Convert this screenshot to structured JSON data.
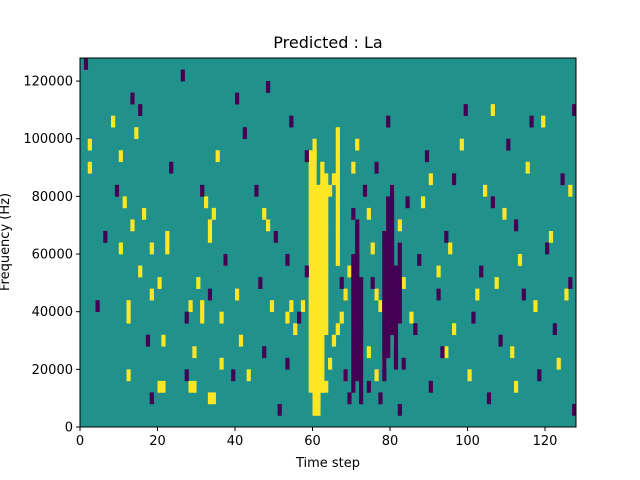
{
  "chart_data": {
    "type": "heatmap",
    "title": "Predicted : La",
    "xlabel": "Time step",
    "ylabel": "Frequency (Hz)",
    "xlim": [
      0,
      128
    ],
    "ylim": [
      0,
      128000
    ],
    "x_ticks": [
      0,
      20,
      40,
      60,
      80,
      100,
      120
    ],
    "y_ticks": [
      0,
      20000,
      40000,
      60000,
      80000,
      100000,
      120000
    ],
    "x_tick_labels": [
      "0",
      "20",
      "40",
      "60",
      "80",
      "100",
      "120"
    ],
    "y_tick_labels": [
      "0",
      "20000",
      "40000",
      "60000",
      "80000",
      "100000",
      "120000"
    ],
    "grid": false,
    "colormap": "viridis",
    "colors": {
      "background": "#21918c",
      "high": "#fde725",
      "low": "#440154"
    },
    "time_steps": 128,
    "frequency_bins": 32,
    "bin_width_hz": 4000,
    "yellow_cells": [
      [
        2,
        24
      ],
      [
        2,
        22
      ],
      [
        8,
        26
      ],
      [
        10,
        23
      ],
      [
        11,
        19
      ],
      [
        13,
        17
      ],
      [
        14,
        25
      ],
      [
        10,
        15
      ],
      [
        12,
        9
      ],
      [
        12,
        10
      ],
      [
        12,
        4
      ],
      [
        15,
        13
      ],
      [
        16,
        18
      ],
      [
        18,
        15
      ],
      [
        18,
        11
      ],
      [
        20,
        12
      ],
      [
        20,
        3
      ],
      [
        21,
        3
      ],
      [
        21,
        7
      ],
      [
        22,
        16
      ],
      [
        22,
        15
      ],
      [
        28,
        10
      ],
      [
        28,
        3
      ],
      [
        29,
        3
      ],
      [
        29,
        6
      ],
      [
        31,
        9
      ],
      [
        31,
        10
      ],
      [
        30,
        12
      ],
      [
        32,
        19
      ],
      [
        33,
        16
      ],
      [
        33,
        17
      ],
      [
        34,
        18
      ],
      [
        33,
        2
      ],
      [
        34,
        2
      ],
      [
        35,
        23
      ],
      [
        36,
        5
      ],
      [
        36,
        9
      ],
      [
        37,
        14
      ],
      [
        40,
        11
      ],
      [
        41,
        7
      ],
      [
        43,
        4
      ],
      [
        47,
        18
      ],
      [
        48,
        17
      ],
      [
        49,
        10
      ],
      [
        53,
        9
      ],
      [
        54,
        10
      ],
      [
        55,
        8
      ],
      [
        57,
        10
      ],
      [
        60,
        8
      ],
      [
        61,
        6
      ],
      [
        60,
        23
      ],
      [
        60,
        2
      ],
      [
        61,
        2
      ],
      [
        62,
        3
      ],
      [
        63,
        3
      ],
      [
        64,
        5
      ],
      [
        65,
        7
      ],
      [
        66,
        8
      ],
      [
        64,
        20
      ],
      [
        65,
        21
      ],
      [
        67,
        9
      ],
      [
        68,
        11
      ],
      [
        69,
        13
      ],
      [
        70,
        22
      ],
      [
        71,
        24
      ],
      [
        74,
        6
      ],
      [
        74,
        18
      ],
      [
        75,
        15
      ],
      [
        76,
        11
      ],
      [
        76,
        4
      ],
      [
        77,
        10
      ],
      [
        78,
        5
      ],
      [
        80,
        20
      ],
      [
        81,
        7
      ],
      [
        82,
        17
      ],
      [
        83,
        12
      ],
      [
        85,
        9
      ],
      [
        88,
        19
      ],
      [
        90,
        21
      ],
      [
        92,
        13
      ],
      [
        94,
        6
      ],
      [
        95,
        15
      ],
      [
        96,
        8
      ],
      [
        98,
        24
      ],
      [
        100,
        4
      ],
      [
        102,
        11
      ],
      [
        104,
        20
      ],
      [
        106,
        27
      ],
      [
        107,
        12
      ],
      [
        109,
        18
      ],
      [
        111,
        6
      ],
      [
        112,
        3
      ],
      [
        113,
        14
      ],
      [
        115,
        22
      ],
      [
        117,
        10
      ],
      [
        119,
        26
      ],
      [
        121,
        16
      ],
      [
        123,
        5
      ],
      [
        125,
        11
      ],
      [
        126,
        20
      ]
    ],
    "yellow_runs": [
      {
        "t": 59,
        "from_bin": 3,
        "to_bin": 23
      },
      {
        "t": 60,
        "from_bin": 1,
        "to_bin": 24
      },
      {
        "t": 61,
        "from_bin": 1,
        "to_bin": 20
      },
      {
        "t": 62,
        "from_bin": 3,
        "to_bin": 22
      },
      {
        "t": 63,
        "from_bin": 8,
        "to_bin": 21
      },
      {
        "t": 66,
        "from_bin": 14,
        "to_bin": 25
      }
    ],
    "dark_cells": [
      [
        1,
        31
      ],
      [
        4,
        10
      ],
      [
        6,
        16
      ],
      [
        9,
        20
      ],
      [
        13,
        28
      ],
      [
        15,
        27
      ],
      [
        17,
        7
      ],
      [
        18,
        2
      ],
      [
        23,
        22
      ],
      [
        26,
        30
      ],
      [
        27,
        9
      ],
      [
        27,
        4
      ],
      [
        31,
        20
      ],
      [
        33,
        11
      ],
      [
        37,
        14
      ],
      [
        39,
        4
      ],
      [
        40,
        28
      ],
      [
        42,
        25
      ],
      [
        45,
        20
      ],
      [
        46,
        12
      ],
      [
        47,
        6
      ],
      [
        48,
        29
      ],
      [
        50,
        16
      ],
      [
        51,
        1
      ],
      [
        53,
        14
      ],
      [
        53,
        5
      ],
      [
        54,
        26
      ],
      [
        56,
        9
      ],
      [
        58,
        13
      ],
      [
        58,
        23
      ],
      [
        67,
        12
      ],
      [
        68,
        4
      ],
      [
        70,
        18
      ],
      [
        72,
        8
      ],
      [
        71,
        14
      ],
      [
        73,
        20
      ],
      [
        75,
        12
      ],
      [
        76,
        22
      ],
      [
        77,
        2
      ],
      [
        78,
        10
      ],
      [
        79,
        26
      ],
      [
        83,
        5
      ],
      [
        84,
        19
      ],
      [
        86,
        8
      ],
      [
        87,
        14
      ],
      [
        89,
        23
      ],
      [
        90,
        3
      ],
      [
        92,
        11
      ],
      [
        93,
        6
      ],
      [
        94,
        16
      ],
      [
        96,
        21
      ],
      [
        99,
        27
      ],
      [
        101,
        9
      ],
      [
        103,
        13
      ],
      [
        105,
        2
      ],
      [
        106,
        19
      ],
      [
        108,
        7
      ],
      [
        110,
        24
      ],
      [
        112,
        17
      ],
      [
        114,
        11
      ],
      [
        116,
        26
      ],
      [
        118,
        4
      ],
      [
        120,
        15
      ],
      [
        122,
        8
      ],
      [
        124,
        21
      ],
      [
        126,
        12
      ],
      [
        127,
        1
      ],
      [
        127,
        27
      ],
      [
        69,
        2
      ],
      [
        71,
        9
      ],
      [
        74,
        3
      ],
      [
        82,
        1
      ]
    ],
    "dark_runs": [
      {
        "t": 70,
        "from_bin": 3,
        "to_bin": 14
      },
      {
        "t": 71,
        "from_bin": 4,
        "to_bin": 17
      },
      {
        "t": 72,
        "from_bin": 2,
        "to_bin": 12
      },
      {
        "t": 78,
        "from_bin": 4,
        "to_bin": 16
      },
      {
        "t": 79,
        "from_bin": 6,
        "to_bin": 19
      },
      {
        "t": 80,
        "from_bin": 8,
        "to_bin": 20
      },
      {
        "t": 81,
        "from_bin": 5,
        "to_bin": 13
      },
      {
        "t": 82,
        "from_bin": 9,
        "to_bin": 15
      }
    ]
  }
}
